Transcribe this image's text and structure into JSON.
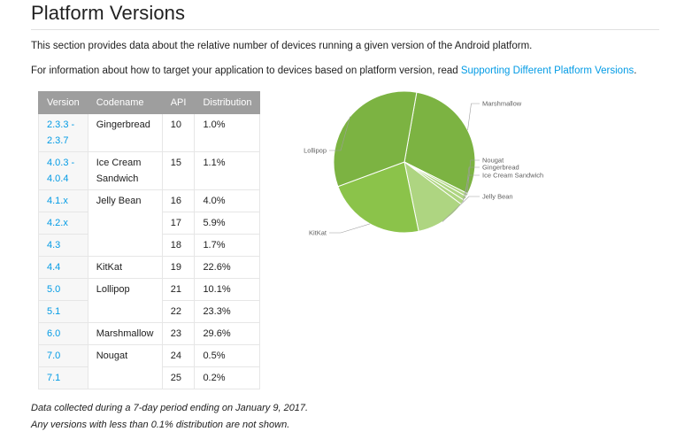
{
  "title": "Platform Versions",
  "intro": "This section provides data about the relative number of devices running a given version of the Android platform.",
  "target": {
    "text": "For information about how to target your application to devices based on platform version, read ",
    "link": "Supporting Different Platform Versions",
    "suffix": "."
  },
  "table": {
    "headers": [
      "Version",
      "Codename",
      "API",
      "Distribution"
    ],
    "rows": [
      {
        "version": "2.3.3 - 2.3.7",
        "codename": "Gingerbread",
        "api": "10",
        "dist": "1.0%"
      },
      {
        "version": "4.0.3 - 4.0.4",
        "codename": "Ice Cream Sandwich",
        "api": "15",
        "dist": "1.1%"
      },
      {
        "version": "4.1.x",
        "codename": "Jelly Bean",
        "api": "16",
        "dist": "4.0%"
      },
      {
        "version": "4.2.x",
        "codename": "",
        "api": "17",
        "dist": "5.9%"
      },
      {
        "version": "4.3",
        "codename": "",
        "api": "18",
        "dist": "1.7%"
      },
      {
        "version": "4.4",
        "codename": "KitKat",
        "api": "19",
        "dist": "22.6%"
      },
      {
        "version": "5.0",
        "codename": "Lollipop",
        "api": "21",
        "dist": "10.1%"
      },
      {
        "version": "5.1",
        "codename": "",
        "api": "22",
        "dist": "23.3%"
      },
      {
        "version": "6.0",
        "codename": "Marshmallow",
        "api": "23",
        "dist": "29.6%"
      },
      {
        "version": "7.0",
        "codename": "Nougat",
        "api": "24",
        "dist": "0.5%"
      },
      {
        "version": "7.1",
        "codename": "",
        "api": "25",
        "dist": "0.2%"
      }
    ]
  },
  "notes": [
    "Data collected during a 7-day period ending on January 9, 2017.",
    "Any versions with less than 0.1% distribution are not shown."
  ],
  "chart_data": {
    "type": "pie",
    "categories": [
      "Marshmallow",
      "Nougat",
      "Gingerbread",
      "Ice Cream Sandwich",
      "Jelly Bean",
      "KitKat",
      "Lollipop"
    ],
    "values": [
      29.6,
      0.7,
      1.0,
      1.1,
      11.6,
      22.6,
      33.4
    ],
    "colors": {
      "Marshmallow": "#7cb342",
      "Nougat": "#aed581",
      "Gingerbread": "#aed581",
      "Ice Cream Sandwich": "#aed581",
      "Jelly Bean": "#aed581",
      "KitKat": "#8bc34a",
      "Lollipop": "#7cb342"
    },
    "stroke": "#ffffff",
    "label_color": "#616161"
  }
}
